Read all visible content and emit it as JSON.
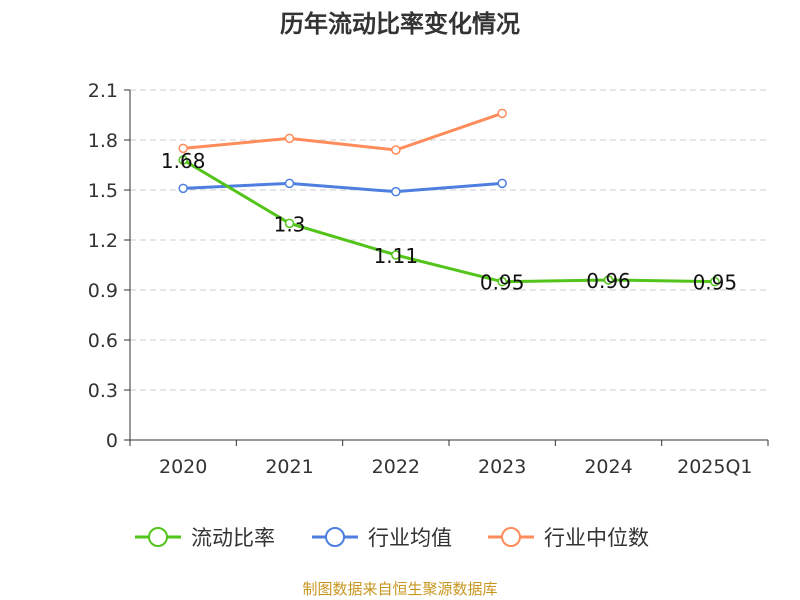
{
  "chart_data": {
    "type": "line",
    "title": "历年流动比率变化情况",
    "categories": [
      "2020",
      "2021",
      "2022",
      "2023",
      "2024",
      "2025Q1"
    ],
    "ylim": [
      0,
      2.1
    ],
    "yticks": [
      "0",
      "0.3",
      "0.6",
      "0.9",
      "1.2",
      "1.5",
      "1.8",
      "2.1"
    ],
    "grid": true,
    "legend_position": "bottom",
    "series": [
      {
        "name": "流动比率",
        "color": "#52c41a",
        "values": [
          1.68,
          1.3,
          1.11,
          0.95,
          0.96,
          0.95
        ],
        "labels": [
          "1.68",
          "1.3",
          "1.11",
          "0.95",
          "0.96",
          "0.95"
        ]
      },
      {
        "name": "行业均值",
        "color": "#4e7fe0",
        "values": [
          1.51,
          1.54,
          1.49,
          1.54,
          null,
          null
        ]
      },
      {
        "name": "行业中位数",
        "color": "#ff8c5a",
        "values": [
          1.75,
          1.81,
          1.74,
          1.96,
          null,
          null
        ]
      }
    ],
    "source": "制图数据来自恒生聚源数据库"
  }
}
